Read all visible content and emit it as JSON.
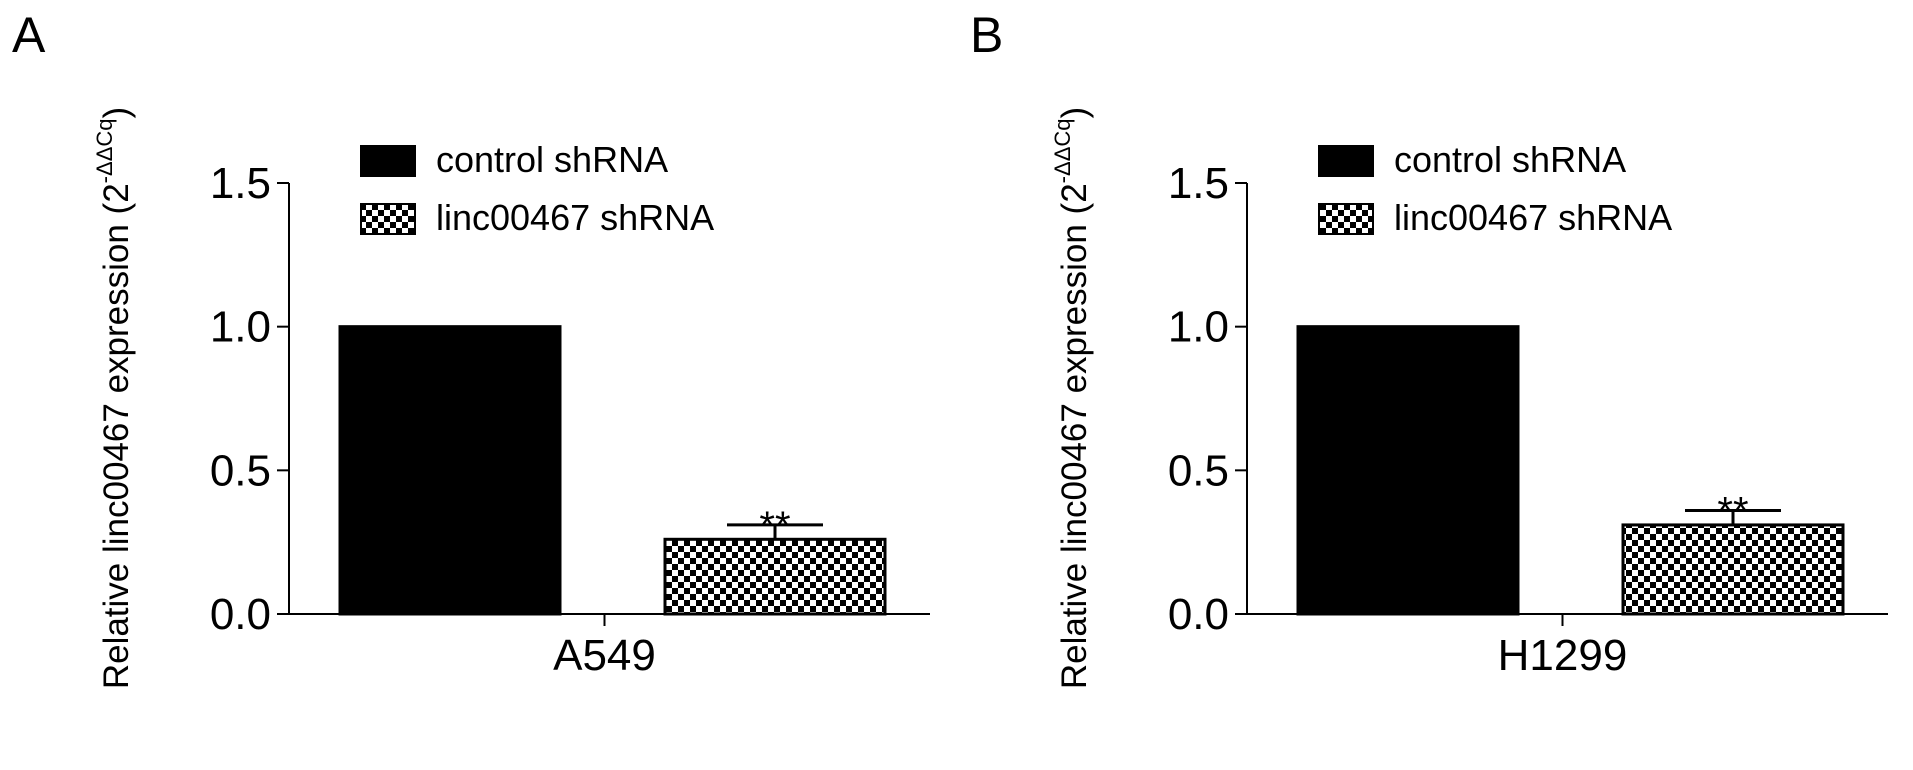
{
  "chart_data": [
    {
      "type": "bar",
      "panel": "A",
      "ylabel": "Relative linc00467 expression (2",
      "ylabel_sup": "-ΔΔCq",
      "ylabel_end": ")",
      "categories": [
        "A549"
      ],
      "series": [
        {
          "name": "control shRNA",
          "color": "#000000",
          "pattern": "solid",
          "values": [
            1.0
          ]
        },
        {
          "name": "linc00467 shRNA",
          "color": "#000000",
          "pattern": "checker",
          "values": [
            0.26
          ],
          "errors": [
            0.05
          ],
          "annotations": [
            "**"
          ]
        }
      ],
      "ylim": [
        0,
        1.5
      ],
      "yticks": [
        {
          "value": 0,
          "label": "0.0"
        },
        {
          "value": 0.5,
          "label": "0.5"
        },
        {
          "value": 1,
          "label": "1.0"
        },
        {
          "value": 1.5,
          "label": "1.5"
        }
      ]
    },
    {
      "type": "bar",
      "panel": "B",
      "ylabel": "Relative linc00467 expression (2",
      "ylabel_sup": "-ΔΔCq",
      "ylabel_end": ")",
      "categories": [
        "H1299"
      ],
      "series": [
        {
          "name": "control shRNA",
          "color": "#000000",
          "pattern": "solid",
          "values": [
            1.0
          ]
        },
        {
          "name": "linc00467 shRNA",
          "color": "#000000",
          "pattern": "checker",
          "values": [
            0.31
          ],
          "errors": [
            0.05
          ],
          "annotations": [
            "**"
          ]
        }
      ],
      "ylim": [
        0,
        1.5
      ],
      "yticks": [
        {
          "value": 0,
          "label": "0.0"
        },
        {
          "value": 0.5,
          "label": "0.5"
        },
        {
          "value": 1,
          "label": "1.0"
        },
        {
          "value": 1.5,
          "label": "1.5"
        }
      ]
    }
  ]
}
